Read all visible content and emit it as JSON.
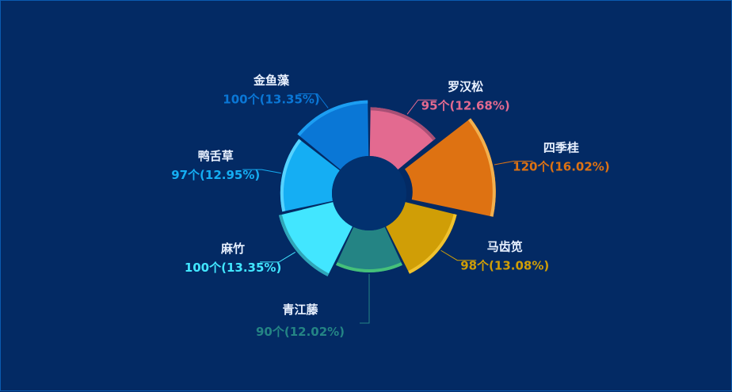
{
  "chart_data": {
    "type": "pie",
    "variant": "rose-donut",
    "unit": "个",
    "slices": [
      {
        "name": "罗汉松",
        "value": 95,
        "percent": "12.68%",
        "value_label": "95个(12.68%)",
        "color": "#e36a90",
        "edge": "#a84f75",
        "anchor": "right"
      },
      {
        "name": "四季桂",
        "value": 120,
        "percent": "16.02%",
        "value_label": "120个(16.02%)",
        "color": "#de7212",
        "edge": "#f2b04e",
        "anchor": "right"
      },
      {
        "name": "马齿笕",
        "value": 98,
        "percent": "13.08%",
        "value_label": "98个(13.08%)",
        "color": "#d09e06",
        "edge": "#f0c22e",
        "anchor": "right"
      },
      {
        "name": "青江藤",
        "value": 90,
        "percent": "12.02%",
        "value_label": "90个(12.02%)",
        "color": "#248484",
        "edge": "#45c07a",
        "anchor": "middle"
      },
      {
        "name": "麻竹",
        "value": 100,
        "percent": "13.35%",
        "value_label": "100个(13.35%)",
        "color": "#42e6ff",
        "edge": "#2fa6b8",
        "anchor": "left"
      },
      {
        "name": "鸭舌草",
        "value": 97,
        "percent": "12.95%",
        "value_label": "97个(12.95%)",
        "color": "#15aef3",
        "edge": "#56d2ff",
        "anchor": "left"
      },
      {
        "name": "金鱼藻",
        "value": 100,
        "percent": "13.35%",
        "value_label": "100个(13.35%)",
        "color": "#0a77d6",
        "edge": "#1c9ef2",
        "anchor": "left"
      }
    ]
  },
  "colors": {
    "background": "#032a64",
    "border": "#0b5bb0",
    "hole": "#02316f",
    "label_name": "#e9f1ff"
  }
}
